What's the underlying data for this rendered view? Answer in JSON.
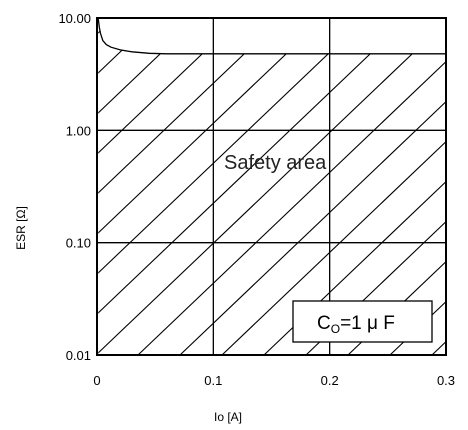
{
  "chart_data": {
    "type": "area",
    "xlabel": "Io [A]",
    "ylabel": "ESR [Ω]",
    "x_scale": "linear",
    "y_scale": "log",
    "xlim": [
      0,
      0.3
    ],
    "ylim": [
      0.01,
      10
    ],
    "x_ticks": [
      "0",
      "0.1",
      "0.2",
      "0.3"
    ],
    "y_ticks": [
      "10.00",
      "1.00",
      "0.10",
      "0.01"
    ],
    "grid": true,
    "series": [
      {
        "x": [
          0.001,
          0.002,
          0.003,
          0.005,
          0.008,
          0.012,
          0.02,
          0.03,
          0.045,
          0.06,
          0.1,
          0.2,
          0.3
        ],
        "y": [
          9.9,
          8.3,
          7.3,
          6.3,
          5.8,
          5.5,
          5.2,
          5.0,
          4.85,
          4.8,
          4.8,
          4.8,
          4.8
        ]
      }
    ],
    "shaded_region": "below curve (hatched)",
    "annotations": {
      "region_label": "Safety area",
      "condition_prefix": "C",
      "condition_subscript": "O",
      "condition_suffix": "=1 μ F"
    }
  }
}
